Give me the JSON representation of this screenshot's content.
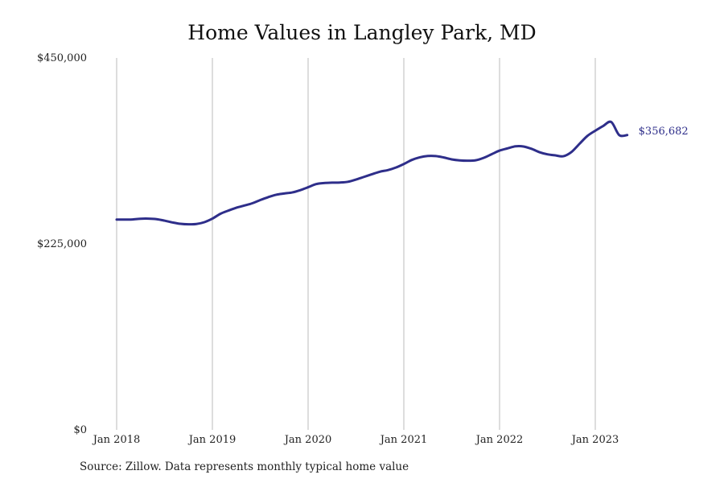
{
  "chart_data": {
    "type": "line",
    "title": "Home Values in Langley Park, MD",
    "source": "Source: Zillow. Data represents monthly typical home value",
    "xlabel": "",
    "ylabel": "",
    "ylim": [
      0,
      450000
    ],
    "y_ticks": [
      {
        "value": 0,
        "label": "$0"
      },
      {
        "value": 225000,
        "label": "$225,000"
      },
      {
        "value": 450000,
        "label": "$450,000"
      }
    ],
    "x_ticks": [
      {
        "value": "2018-01",
        "label": "Jan 2018"
      },
      {
        "value": "2019-01",
        "label": "Jan 2019"
      },
      {
        "value": "2020-01",
        "label": "Jan 2020"
      },
      {
        "value": "2021-01",
        "label": "Jan 2021"
      },
      {
        "value": "2022-01",
        "label": "Jan 2022"
      },
      {
        "value": "2023-01",
        "label": "Jan 2023"
      }
    ],
    "grid": "vertical lines at yearly ticks",
    "end_label": "$356,682",
    "colors": {
      "line": "#2e2e8a",
      "grid": "#bbbbbb"
    },
    "series": [
      {
        "x": [
          "2018-01",
          "2018-02",
          "2018-03",
          "2018-04",
          "2018-05",
          "2018-06",
          "2018-07",
          "2018-08",
          "2018-09",
          "2018-10",
          "2018-11",
          "2018-12",
          "2019-01",
          "2019-02",
          "2019-03",
          "2019-04",
          "2019-05",
          "2019-06",
          "2019-07",
          "2019-08",
          "2019-09",
          "2019-10",
          "2019-11",
          "2019-12",
          "2020-01",
          "2020-02",
          "2020-03",
          "2020-04",
          "2020-05",
          "2020-06",
          "2020-07",
          "2020-08",
          "2020-09",
          "2020-10",
          "2020-11",
          "2020-12",
          "2021-01",
          "2021-02",
          "2021-03",
          "2021-04",
          "2021-05",
          "2021-06",
          "2021-07",
          "2021-08",
          "2021-09",
          "2021-10",
          "2021-11",
          "2021-12",
          "2022-01",
          "2022-02",
          "2022-03",
          "2022-04",
          "2022-05",
          "2022-06",
          "2022-07",
          "2022-08",
          "2022-09",
          "2022-10",
          "2022-11",
          "2022-12",
          "2023-01",
          "2023-02",
          "2023-03",
          "2023-04",
          "2023-05"
        ],
        "values": [
          254500,
          254500,
          254600,
          255500,
          255600,
          255000,
          253200,
          251000,
          249300,
          248700,
          249100,
          251300,
          255600,
          261400,
          265300,
          268800,
          271400,
          274200,
          278100,
          281600,
          284500,
          286000,
          287300,
          290000,
          293600,
          297400,
          298700,
          299100,
          299300,
          300200,
          302900,
          306100,
          309300,
          312400,
          314300,
          317400,
          321700,
          326600,
          329800,
          331400,
          331300,
          329600,
          327300,
          326100,
          325700,
          326200,
          329100,
          333500,
          337900,
          340600,
          343100,
          342900,
          340100,
          336000,
          333400,
          332100,
          331100,
          336100,
          345900,
          355600,
          362000,
          367800,
          372500,
          356682,
          356682
        ]
      }
    ]
  }
}
